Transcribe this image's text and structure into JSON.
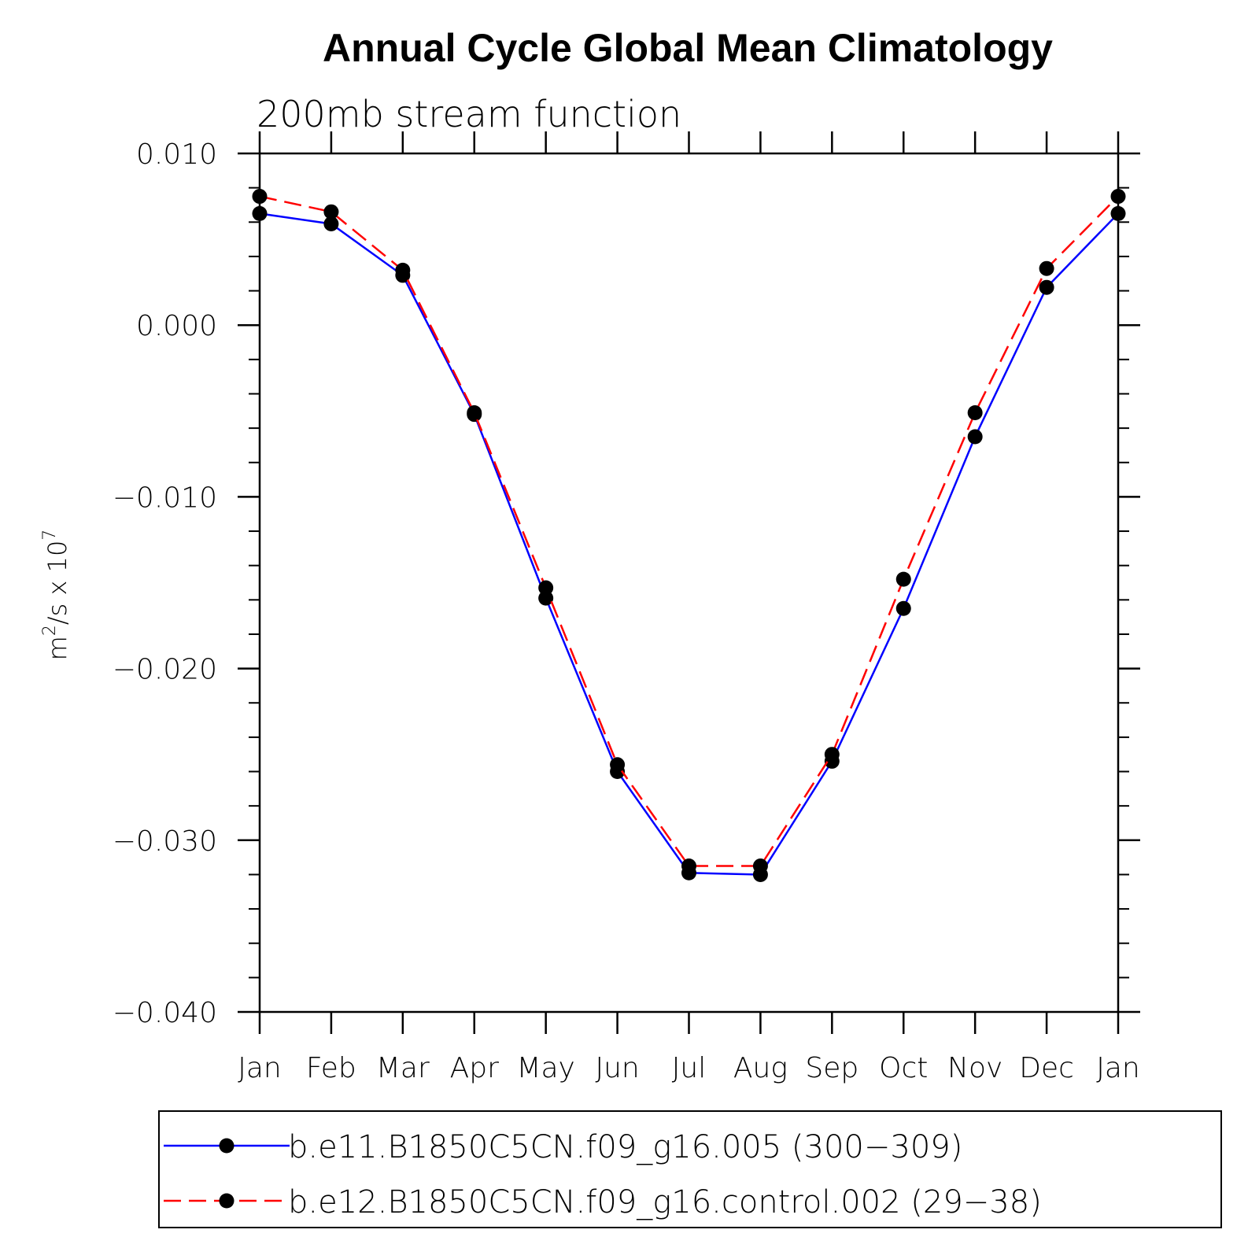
{
  "chart_data": {
    "type": "line",
    "title": "Annual Cycle Global Mean Climatology",
    "subtitle": "200mb stream function",
    "ylabel": {
      "base": "m",
      "sup1": "2",
      "mid": "/s x 10",
      "sup2": "7"
    },
    "categories": [
      "Jan",
      "Feb",
      "Mar",
      "Apr",
      "May",
      "Jun",
      "Jul",
      "Aug",
      "Sep",
      "Oct",
      "Nov",
      "Dec",
      "Jan"
    ],
    "ylim": [
      -0.04,
      0.01
    ],
    "yticks": [
      0.01,
      0.0,
      -0.01,
      -0.02,
      -0.03,
      -0.04
    ],
    "ytick_labels": [
      "0.010",
      "0.000",
      "−0.010",
      "−0.020",
      "−0.030",
      "−0.040"
    ],
    "series": [
      {
        "name": "b.e11.B1850C5CN.f09_g16.005 (300−309)",
        "color": "#0000ff",
        "dash": "solid",
        "values": [
          0.0065,
          0.0059,
          0.0029,
          -0.0052,
          -0.0159,
          -0.026,
          -0.0319,
          -0.032,
          -0.0254,
          -0.0165,
          -0.0065,
          0.0022,
          0.0065
        ]
      },
      {
        "name": "b.e12.B1850C5CN.f09_g16.control.002 (29−38)",
        "color": "#ff0000",
        "dash": "dashed",
        "values": [
          0.0075,
          0.0066,
          0.0032,
          -0.0051,
          -0.0153,
          -0.0256,
          -0.0315,
          -0.0315,
          -0.025,
          -0.0148,
          -0.0051,
          0.0033,
          0.0075
        ]
      }
    ],
    "grid": false,
    "legend_position": "bottom"
  }
}
